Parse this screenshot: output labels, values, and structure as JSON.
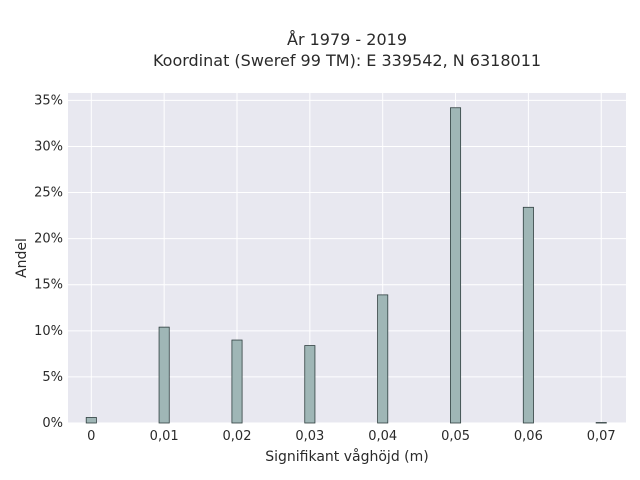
{
  "chart_data": {
    "type": "bar",
    "title_lines": [
      "År 1979 - 2019",
      "Koordinat (Sweref 99 TM): E 339542, N 6318011"
    ],
    "xlabel": "Signifikant våghöjd (m)",
    "ylabel": "Andel",
    "x": [
      0,
      0.01,
      0.02,
      0.03,
      0.04,
      0.05,
      0.06,
      0.07
    ],
    "values": [
      0.6,
      10.4,
      9.0,
      8.4,
      13.9,
      34.2,
      23.4,
      0.05
    ],
    "xticks": [
      0,
      0.01,
      0.02,
      0.03,
      0.04,
      0.05,
      0.06,
      0.07
    ],
    "xtick_labels": [
      "0",
      "0,01",
      "0,02",
      "0,03",
      "0,04",
      "0,05",
      "0,06",
      "0,07"
    ],
    "yticks": [
      0,
      5,
      10,
      15,
      20,
      25,
      30,
      35
    ],
    "ytick_labels": [
      "0%",
      "5%",
      "10%",
      "15%",
      "20%",
      "25%",
      "30%",
      "35%"
    ],
    "xlim": [
      -0.0032,
      0.0734
    ],
    "ylim": [
      0,
      35.8
    ],
    "grid": true,
    "colors": {
      "bar_fill": "#9fb6b6",
      "bar_edge": "#2f3f3f",
      "plot_bg": "#e8e8f0",
      "grid": "#ffffff"
    }
  }
}
